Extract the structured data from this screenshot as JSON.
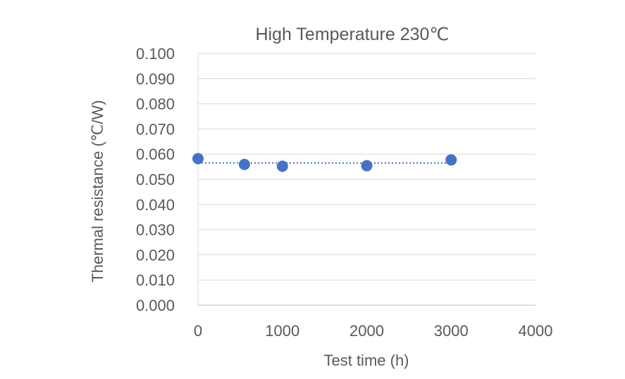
{
  "chart_data": {
    "type": "scatter",
    "title": "High Temperature 230℃",
    "xlabel": "Test time (h)",
    "ylabel": "Thermal resistance (℃/W)",
    "xlim": [
      0,
      4000
    ],
    "ylim": [
      0,
      0.1
    ],
    "x_ticks": [
      "0",
      "1000",
      "2000",
      "3000",
      "4000"
    ],
    "y_ticks": [
      "0.000",
      "0.010",
      "0.020",
      "0.030",
      "0.040",
      "0.050",
      "0.060",
      "0.070",
      "0.080",
      "0.090",
      "0.100"
    ],
    "grid": "horizontal",
    "trendline": "linear, dotted",
    "series": [
      {
        "x": [
          0,
          550,
          1000,
          2000,
          3000
        ],
        "y": [
          0.0582,
          0.0559,
          0.0552,
          0.0554,
          0.0577
        ]
      }
    ],
    "colors": {
      "marker": "#4472C4",
      "grid": "#d9d9d9",
      "text": "#595959"
    }
  }
}
